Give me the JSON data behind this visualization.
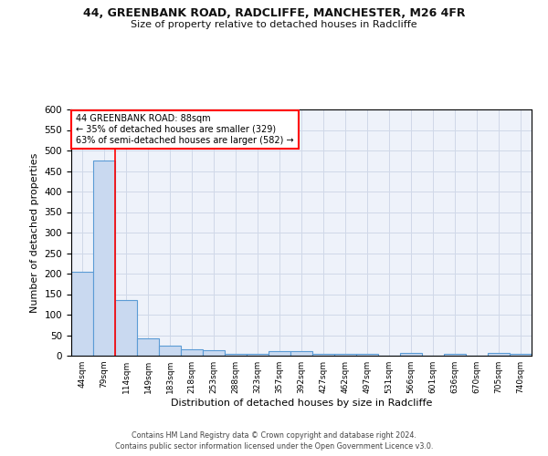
{
  "title_line1": "44, GREENBANK ROAD, RADCLIFFE, MANCHESTER, M26 4FR",
  "title_line2": "Size of property relative to detached houses in Radcliffe",
  "xlabel": "Distribution of detached houses by size in Radcliffe",
  "ylabel": "Number of detached properties",
  "bar_labels": [
    "44sqm",
    "79sqm",
    "114sqm",
    "149sqm",
    "183sqm",
    "218sqm",
    "253sqm",
    "288sqm",
    "323sqm",
    "357sqm",
    "392sqm",
    "427sqm",
    "462sqm",
    "497sqm",
    "531sqm",
    "566sqm",
    "601sqm",
    "636sqm",
    "670sqm",
    "705sqm",
    "740sqm"
  ],
  "bar_values": [
    204,
    476,
    135,
    43,
    24,
    15,
    13,
    5,
    5,
    11,
    11,
    5,
    4,
    5,
    0,
    6,
    0,
    5,
    0,
    6,
    5
  ],
  "bar_color": "#c9d9f0",
  "bar_edge_color": "#5b9bd5",
  "bar_edge_width": 0.8,
  "red_line_x": 1.5,
  "annotation_text": "44 GREENBANK ROAD: 88sqm\n← 35% of detached houses are smaller (329)\n63% of semi-detached houses are larger (582) →",
  "annotation_box_color": "white",
  "annotation_box_edge": "red",
  "ylim": [
    0,
    600
  ],
  "yticks": [
    0,
    50,
    100,
    150,
    200,
    250,
    300,
    350,
    400,
    450,
    500,
    550,
    600
  ],
  "grid_color": "#d0d8e8",
  "background_color": "#eef2fa",
  "footnote1": "Contains HM Land Registry data © Crown copyright and database right 2024.",
  "footnote2": "Contains public sector information licensed under the Open Government Licence v3.0."
}
